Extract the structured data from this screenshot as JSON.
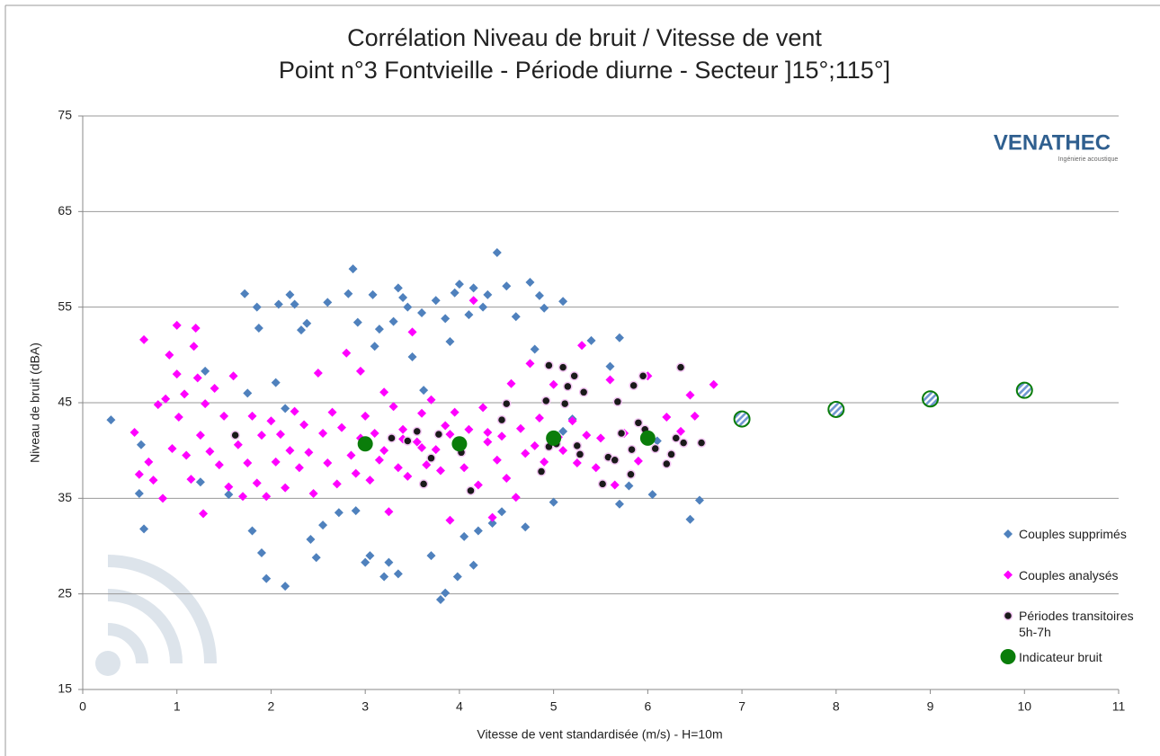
{
  "chart_data": {
    "type": "scatter",
    "title": "Corrélation Niveau de bruit / Vitesse de vent",
    "subtitle": "Point n°3 Fontvieille - Période diurne - Secteur ]15°;115°]",
    "x_label": "Vitesse de vent standardisée (m/s) - H=10m",
    "y_label": "Niveau de bruit (dBA)",
    "logo": {
      "name": "VENATHEC",
      "tagline": "Ingénierie acoustique"
    },
    "xlim": [
      0,
      11
    ],
    "xticks": [
      0,
      1,
      2,
      3,
      4,
      5,
      6,
      7,
      8,
      9,
      10,
      11
    ],
    "ylim": [
      15,
      75
    ],
    "yticks": [
      15,
      25,
      35,
      45,
      55,
      65,
      75
    ],
    "grid": true,
    "legend": "right",
    "series": [
      {
        "name": "Couples supprimés",
        "color": "#4f81bd",
        "marker": "diamond",
        "x": [
          0.3,
          0.6,
          0.65,
          0.62,
          1.25,
          1.3,
          1.55,
          1.75,
          1.72,
          1.8,
          1.85,
          1.87,
          1.9,
          1.95,
          2.05,
          2.08,
          2.15,
          2.15,
          2.2,
          2.25,
          2.32,
          2.38,
          2.42,
          2.48,
          2.55,
          2.6,
          2.72,
          2.82,
          2.87,
          2.9,
          2.92,
          3,
          3.05,
          3.08,
          3.1,
          3.15,
          3.2,
          3.25,
          3.3,
          3.35,
          3.35,
          3.4,
          3.45,
          3.5,
          3.6,
          3.62,
          3.7,
          3.75,
          3.8,
          3.85,
          3.85,
          3.9,
          3.95,
          3.98,
          4,
          4.05,
          4.1,
          4.15,
          4.15,
          4.2,
          4.25,
          4.3,
          4.35,
          4.4,
          4.45,
          4.5,
          4.6,
          4.7,
          4.75,
          4.8,
          4.85,
          4.9,
          5,
          5.1,
          5.2,
          5.4,
          5.6,
          5.7,
          5.7,
          5.8,
          6.05,
          6.45,
          6.55,
          6.1,
          5.1
        ],
        "values": [
          43.2,
          35.5,
          31.8,
          40.6,
          36.7,
          48.3,
          35.4,
          46,
          56.4,
          31.6,
          55,
          52.8,
          29.3,
          26.6,
          47.1,
          55.3,
          44.4,
          25.8,
          56.3,
          55.3,
          52.6,
          53.3,
          30.7,
          28.8,
          32.2,
          55.5,
          33.5,
          56.4,
          59,
          33.7,
          53.4,
          28.3,
          29,
          56.3,
          50.9,
          52.7,
          26.8,
          28.3,
          53.5,
          27.1,
          57,
          56,
          55,
          49.8,
          54.4,
          46.3,
          29,
          55.7,
          24.4,
          25.1,
          53.8,
          51.4,
          56.5,
          26.8,
          57.4,
          31,
          54.2,
          28,
          57,
          31.6,
          55,
          56.3,
          32.4,
          60.7,
          33.6,
          57.2,
          54,
          32,
          57.6,
          50.6,
          56.2,
          54.9,
          34.6,
          55.6,
          43.3,
          51.5,
          48.8,
          34.4,
          51.8,
          36.3,
          35.4,
          32.8,
          34.8,
          41,
          42
        ]
      },
      {
        "name": "Couples analysés",
        "color": "#ff00ff",
        "marker": "diamond",
        "x": [
          0.55,
          0.6,
          0.65,
          0.7,
          0.75,
          0.8,
          0.85,
          0.88,
          0.92,
          0.95,
          1,
          1,
          1.02,
          1.08,
          1.1,
          1.15,
          1.18,
          1.2,
          1.22,
          1.25,
          1.28,
          1.3,
          1.35,
          1.4,
          1.45,
          1.5,
          1.55,
          1.6,
          1.65,
          1.7,
          1.75,
          1.8,
          1.85,
          1.9,
          1.95,
          2,
          2.05,
          2.1,
          2.15,
          2.2,
          2.25,
          2.3,
          2.35,
          2.4,
          2.45,
          2.5,
          2.55,
          2.6,
          2.65,
          2.7,
          2.75,
          2.8,
          2.85,
          2.9,
          2.95,
          3,
          3.05,
          3.1,
          3.15,
          3.2,
          3.25,
          3.3,
          3.35,
          3.4,
          3.45,
          3.5,
          3.55,
          3.6,
          3.65,
          3.7,
          3.75,
          3.8,
          3.85,
          3.9,
          3.95,
          4.05,
          4.1,
          4.15,
          4.2,
          4.25,
          4.3,
          4.35,
          4.4,
          4.45,
          4.5,
          4.55,
          4.6,
          4.65,
          4.7,
          4.75,
          4.8,
          4.85,
          4.9,
          5,
          5.05,
          5.1,
          5.2,
          5.25,
          5.3,
          5.35,
          5.45,
          5.5,
          5.6,
          5.65,
          5.75,
          5.9,
          6,
          6.2,
          6.35,
          6.45,
          6.5,
          6.7,
          3.4,
          3.6,
          3.9,
          4.3,
          2.95,
          3.2
        ],
        "values": [
          41.9,
          37.5,
          51.6,
          38.8,
          36.9,
          44.8,
          35,
          45.4,
          50,
          40.2,
          53.1,
          48,
          43.5,
          45.9,
          39.5,
          37,
          50.9,
          52.8,
          47.6,
          41.6,
          33.4,
          44.9,
          39.9,
          46.5,
          38.5,
          43.6,
          36.2,
          47.8,
          40.6,
          35.2,
          38.7,
          43.6,
          36.6,
          41.6,
          35.2,
          43.1,
          38.8,
          41.7,
          36.1,
          40,
          44.1,
          38.2,
          42.7,
          39.8,
          35.5,
          48.1,
          41.8,
          38.7,
          44,
          36.5,
          42.4,
          50.2,
          39.5,
          37.6,
          48.3,
          43.6,
          36.9,
          41.8,
          39,
          46.1,
          33.6,
          44.6,
          38.2,
          42.2,
          37.3,
          52.4,
          40.9,
          43.9,
          38.5,
          45.3,
          40.1,
          37.9,
          42.6,
          32.7,
          44,
          38.2,
          42.2,
          55.7,
          36.4,
          44.5,
          40.9,
          33,
          39,
          41.5,
          37.1,
          47,
          35.1,
          42.3,
          39.7,
          49.1,
          40.5,
          43.4,
          38.8,
          46.9,
          41.4,
          40,
          43.1,
          38.7,
          51,
          41.6,
          38.2,
          41.3,
          47.4,
          36.4,
          41.8,
          38.9,
          47.8,
          43.5,
          42,
          45.8,
          43.6,
          46.9,
          41.2,
          40.3,
          41.7,
          41.9,
          41.3,
          40
        ]
      },
      {
        "name": "Périodes transitoires 5h-7h",
        "color": "#1a1a1a",
        "marker": "ring",
        "x": [
          1.62,
          3.28,
          3.45,
          3.55,
          3.62,
          3.7,
          3.78,
          4.02,
          4.12,
          4.45,
          4.5,
          4.87,
          4.92,
          4.95,
          4.95,
          5.03,
          5.1,
          5.12,
          5.15,
          5.22,
          5.25,
          5.28,
          5.32,
          5.52,
          5.58,
          5.65,
          5.68,
          5.72,
          5.82,
          5.83,
          5.85,
          5.9,
          5.95,
          5.97,
          6.08,
          6.2,
          6.25,
          6.3,
          6.35,
          6.38,
          6.57
        ],
        "values": [
          41.6,
          41.3,
          41,
          42,
          36.5,
          39.2,
          41.7,
          39.8,
          35.8,
          43.2,
          44.9,
          37.8,
          45.2,
          48.9,
          40.4,
          40.7,
          48.7,
          44.9,
          46.7,
          47.8,
          40.5,
          39.6,
          46.1,
          36.5,
          39.3,
          39,
          45.1,
          41.8,
          37.5,
          40.1,
          46.8,
          42.9,
          47.8,
          42.2,
          40.2,
          38.6,
          39.6,
          41.3,
          48.7,
          40.8,
          40.8
        ]
      },
      {
        "name": "Indicateur bruit",
        "color": "#0a7d0a",
        "marker": "circle",
        "x": [
          3,
          4,
          5,
          6
        ],
        "values": [
          40.7,
          40.7,
          41.3,
          41.3
        ]
      },
      {
        "color": "#0a7d0a",
        "marker": "hatched",
        "x": [
          7,
          8,
          9,
          10
        ],
        "values": [
          43.3,
          44.3,
          45.4,
          46.3
        ]
      }
    ]
  }
}
